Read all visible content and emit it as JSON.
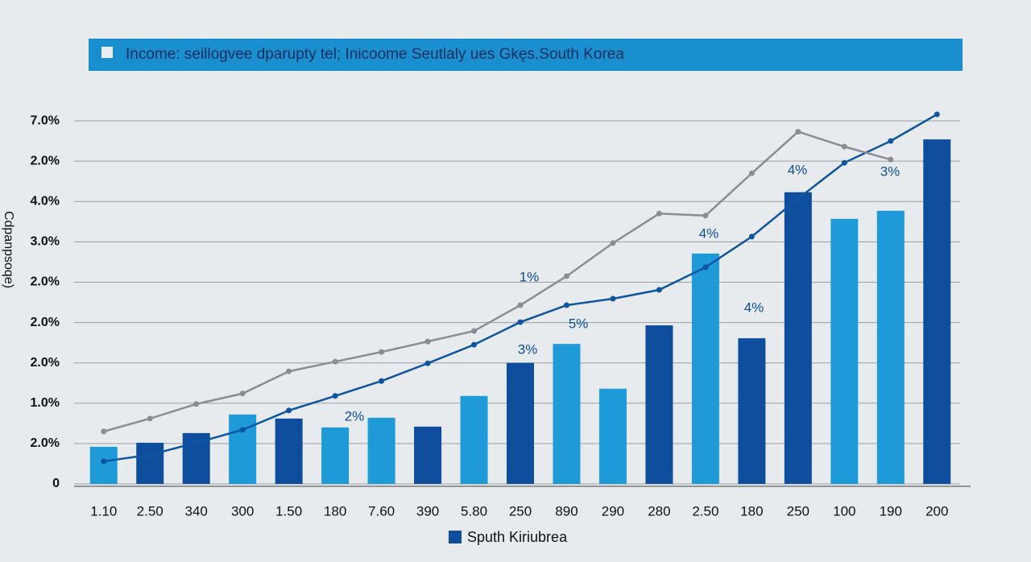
{
  "chart_data": {
    "type": "bar_line",
    "title": "Income: seillogvee dparupty tel; Inicoome Seutlaly ues Gkęs.South Korea",
    "y_axis_label": "Cdpanpsoqe)",
    "categories": [
      "1.10",
      "2.50",
      "340",
      "300",
      "1.50",
      "180",
      "7.60",
      "390",
      "5.80",
      "250",
      "890",
      "290",
      "280",
      "2.50",
      "180",
      "250",
      "100",
      "190",
      "200"
    ],
    "series": [
      {
        "name": "Sputh Kiriubrea",
        "kind": "bar",
        "colors": [
          "#1e9ad8",
          "#0e4e9c",
          "#0e4e9c",
          "#1e9ad8",
          "#0e4e9c",
          "#1e9ad8",
          "#1e9ad8",
          "#0e4e9c",
          "#1e9ad8",
          "#0e4e9c",
          "#1e9ad8",
          "#1e9ad8",
          "#0e4e9c",
          "#1e9ad8",
          "#0e4e9c",
          "#0e4e9c",
          "#1e9ad8",
          "#1e9ad8",
          "#0e4e9c"
        ],
        "values": [
          0.92,
          1.02,
          1.26,
          1.72,
          1.62,
          1.4,
          1.64,
          1.42,
          2.18,
          3.0,
          3.47,
          2.36,
          3.93,
          5.71,
          3.61,
          7.23,
          6.57,
          6.77,
          8.54
        ]
      },
      {
        "kind": "line",
        "color": "#0d55a0",
        "values": [
          0.56,
          0.72,
          1.02,
          1.34,
          1.82,
          2.18,
          2.55,
          2.99,
          3.45,
          4.01,
          4.43,
          4.59,
          4.81,
          5.37,
          6.13,
          7.07,
          7.96,
          8.5,
          9.16
        ]
      },
      {
        "kind": "line",
        "color": "#8a8d91",
        "values": [
          1.3,
          1.62,
          1.98,
          2.24,
          2.79,
          3.03,
          3.27,
          3.53,
          3.79,
          4.43,
          5.15,
          5.97,
          6.7,
          6.65,
          7.7,
          8.73,
          8.36,
          8.04,
          null
        ]
      }
    ],
    "annotations": [
      "1%",
      "5%",
      "3%",
      "2%",
      "4%",
      "4%",
      "4%",
      "3%"
    ],
    "ylim": [
      0,
      9.6
    ],
    "yticks": [
      0,
      {
        "value": 1,
        "label": "2.0%"
      },
      {
        "value": 2,
        "label": "1.0%"
      },
      {
        "value": 3,
        "label": "2.0%"
      },
      {
        "value": 4,
        "label": "2.0%"
      },
      {
        "value": 5,
        "label": "2.0%"
      },
      {
        "value": 6,
        "label": "3.0%"
      },
      {
        "value": 7,
        "label": "4.0%"
      },
      {
        "value": 8,
        "label": "2.0%"
      },
      {
        "value": 9,
        "label": "7.0%"
      }
    ],
    "grid": true
  }
}
